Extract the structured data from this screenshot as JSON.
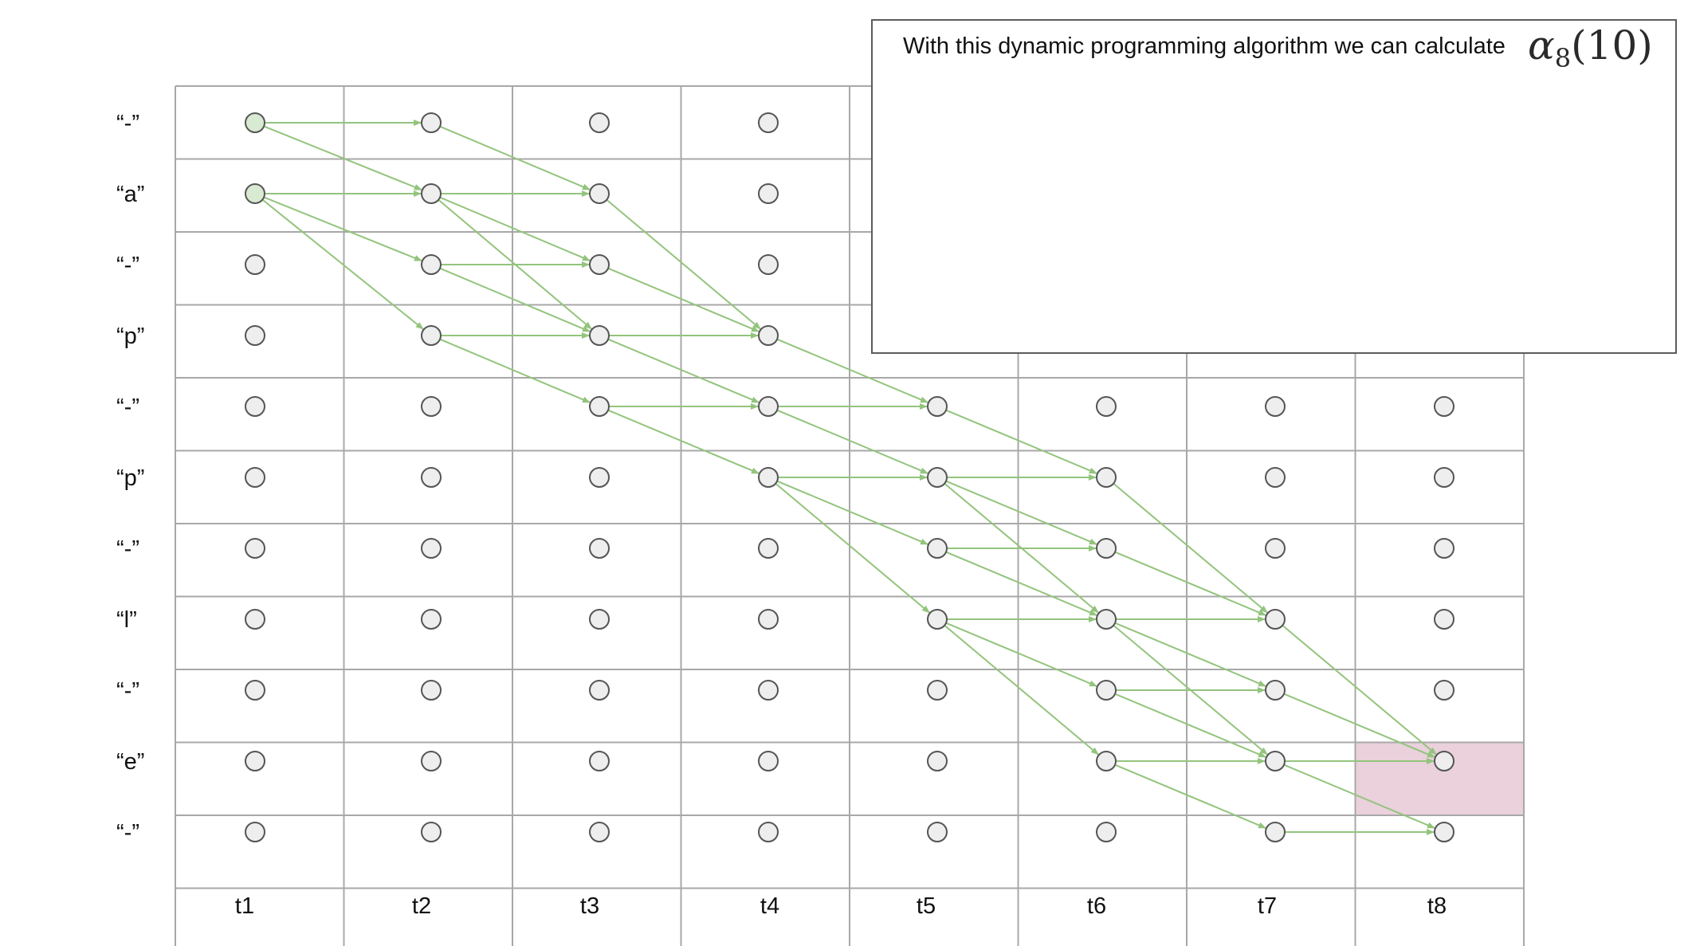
{
  "callout": {
    "text": "With this dynamic programming algorithm we can calculate",
    "math_symbol": "α",
    "math_subscript": "8",
    "math_argument": "(10)"
  },
  "rows": [
    "“-”",
    "“a”",
    "“-”",
    "“p”",
    "“-”",
    "“p”",
    "“-”",
    "“l”",
    "“-”",
    "“e”",
    "“-”"
  ],
  "columns": [
    "t1",
    "t2",
    "t3",
    "t4",
    "t5",
    "t6",
    "t7",
    "t8"
  ],
  "start_nodes": [
    [
      0,
      0
    ],
    [
      0,
      1
    ]
  ],
  "highlight_cell": {
    "t": 7,
    "s": 9
  },
  "edges": [
    [
      0,
      0,
      1,
      0
    ],
    [
      0,
      0,
      1,
      1
    ],
    [
      0,
      1,
      1,
      1
    ],
    [
      0,
      1,
      1,
      2
    ],
    [
      0,
      1,
      1,
      3
    ],
    [
      1,
      0,
      2,
      1
    ],
    [
      1,
      1,
      2,
      1
    ],
    [
      1,
      1,
      2,
      2
    ],
    [
      1,
      1,
      2,
      3
    ],
    [
      1,
      2,
      2,
      2
    ],
    [
      1,
      2,
      2,
      3
    ],
    [
      1,
      3,
      2,
      3
    ],
    [
      1,
      3,
      2,
      4
    ],
    [
      2,
      1,
      3,
      3
    ],
    [
      2,
      2,
      3,
      3
    ],
    [
      2,
      3,
      3,
      3
    ],
    [
      2,
      3,
      3,
      4
    ],
    [
      2,
      4,
      3,
      4
    ],
    [
      2,
      4,
      3,
      5
    ],
    [
      3,
      3,
      4,
      4
    ],
    [
      3,
      4,
      4,
      4
    ],
    [
      3,
      4,
      4,
      5
    ],
    [
      3,
      5,
      4,
      5
    ],
    [
      3,
      5,
      4,
      6
    ],
    [
      3,
      5,
      4,
      7
    ],
    [
      4,
      4,
      5,
      5
    ],
    [
      4,
      5,
      5,
      5
    ],
    [
      4,
      5,
      5,
      6
    ],
    [
      4,
      5,
      5,
      7
    ],
    [
      4,
      6,
      5,
      6
    ],
    [
      4,
      6,
      5,
      7
    ],
    [
      4,
      7,
      5,
      7
    ],
    [
      4,
      7,
      5,
      8
    ],
    [
      4,
      7,
      5,
      9
    ],
    [
      5,
      5,
      6,
      7
    ],
    [
      5,
      6,
      6,
      7
    ],
    [
      5,
      7,
      6,
      7
    ],
    [
      5,
      7,
      6,
      8
    ],
    [
      5,
      7,
      6,
      9
    ],
    [
      5,
      8,
      6,
      8
    ],
    [
      5,
      8,
      6,
      9
    ],
    [
      5,
      9,
      6,
      9
    ],
    [
      5,
      9,
      6,
      10
    ],
    [
      6,
      7,
      7,
      9
    ],
    [
      6,
      8,
      7,
      9
    ],
    [
      6,
      9,
      7,
      9
    ],
    [
      6,
      9,
      7,
      10
    ],
    [
      6,
      10,
      7,
      10
    ]
  ],
  "colors": {
    "grid_line": "#a8a8a8",
    "node_fill": "#eeeeee",
    "node_stroke": "#555555",
    "start_node_fill": "#d9ead3",
    "edge": "#93c47d",
    "highlight_fill": "#ead1dc"
  }
}
